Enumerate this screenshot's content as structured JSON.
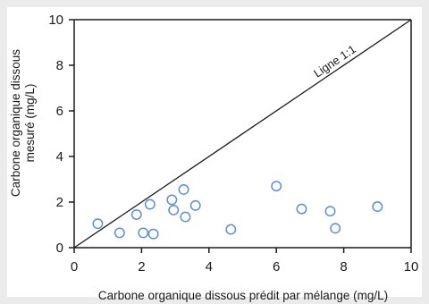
{
  "chart_data": {
    "type": "scatter",
    "title": "",
    "xlabel": "Carbone organique dissous prédit  par mélange (mg/L)",
    "ylabel_lines": [
      "Carbone organique dissous",
      "mesuré (mg/L)"
    ],
    "xlim": [
      0,
      10
    ],
    "ylim": [
      0,
      10
    ],
    "x_ticks": [
      "0",
      "2",
      "4",
      "6",
      "8",
      "10"
    ],
    "y_ticks": [
      "0",
      "2",
      "4",
      "6",
      "8",
      "10"
    ],
    "grid": false,
    "reference_line": {
      "label": "Ligne 1:1",
      "from": [
        0,
        0
      ],
      "to": [
        10,
        10
      ]
    },
    "series": [
      {
        "marker": "open-circle",
        "color": "#5b8ed6",
        "points": [
          [
            0.7,
            1.05
          ],
          [
            1.35,
            0.65
          ],
          [
            1.85,
            1.45
          ],
          [
            2.05,
            0.65
          ],
          [
            2.25,
            1.9
          ],
          [
            2.35,
            0.6
          ],
          [
            2.9,
            2.1
          ],
          [
            2.95,
            1.65
          ],
          [
            3.25,
            2.55
          ],
          [
            3.3,
            1.35
          ],
          [
            3.6,
            1.85
          ],
          [
            4.65,
            0.8
          ],
          [
            6.0,
            2.7
          ],
          [
            6.75,
            1.7
          ],
          [
            7.6,
            1.6
          ],
          [
            7.75,
            0.85
          ],
          [
            9.0,
            1.8
          ]
        ]
      }
    ]
  }
}
